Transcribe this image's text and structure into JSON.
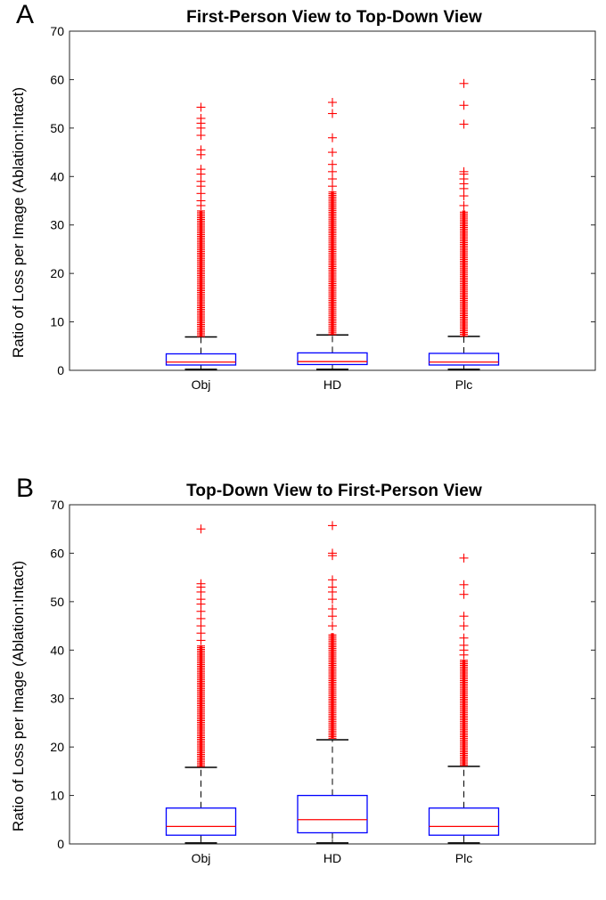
{
  "panels": [
    {
      "letter": "A",
      "title": "First-Person View to Top-Down View",
      "ylabel": "Ratio of Loss per Image (Ablation:Intact)"
    },
    {
      "letter": "B",
      "title": "Top-Down View to First-Person View",
      "ylabel": "Ratio of Loss per Image (Ablation:Intact)"
    }
  ],
  "colors": {
    "box": "#0000ff",
    "median": "#ff0000",
    "outlier": "#ff0000",
    "whisker": "#000000",
    "axis": "#262626"
  },
  "chart_data": [
    {
      "type": "boxplot",
      "title": "First-Person View to Top-Down View",
      "xlabel": "",
      "ylabel": "Ratio of Loss per Image (Ablation:Intact)",
      "ylim": [
        0,
        70
      ],
      "yticks": [
        0,
        10,
        20,
        30,
        40,
        50,
        60,
        70
      ],
      "categories": [
        "Obj",
        "HD",
        "Plc"
      ],
      "grid": false,
      "boxes": [
        {
          "category": "Obj",
          "whisker_low": 0.2,
          "q1": 1.1,
          "median": 1.7,
          "q3": 3.4,
          "whisker_high": 6.9,
          "outlier_range": [
            7.0,
            33.0
          ],
          "outliers_high": [
            34,
            35,
            36.5,
            38,
            39,
            40.5,
            41.5,
            44.5,
            45.5,
            48.5,
            50,
            51,
            52,
            54.3
          ]
        },
        {
          "category": "HD",
          "whisker_low": 0.2,
          "q1": 1.2,
          "median": 1.8,
          "q3": 3.6,
          "whisker_high": 7.3,
          "outlier_range": [
            7.4,
            37.0
          ],
          "outliers_high": [
            38,
            39.5,
            41,
            42.5,
            45,
            48,
            53,
            55.3
          ]
        },
        {
          "category": "Plc",
          "whisker_low": 0.2,
          "q1": 1.1,
          "median": 1.7,
          "q3": 3.5,
          "whisker_high": 7.0,
          "outlier_range": [
            7.1,
            33.0
          ],
          "outliers_high": [
            34,
            36,
            37.5,
            38.5,
            39.5,
            40.5,
            41,
            50.8,
            54.7,
            59.2
          ]
        }
      ]
    },
    {
      "type": "boxplot",
      "title": "Top-Down View to First-Person View",
      "xlabel": "",
      "ylabel": "Ratio of Loss per Image (Ablation:Intact)",
      "ylim": [
        0,
        70
      ],
      "yticks": [
        0,
        10,
        20,
        30,
        40,
        50,
        60,
        70
      ],
      "categories": [
        "Obj",
        "HD",
        "Plc"
      ],
      "grid": false,
      "boxes": [
        {
          "category": "Obj",
          "whisker_low": 0.2,
          "q1": 1.8,
          "median": 3.6,
          "q3": 7.4,
          "whisker_high": 15.8,
          "outlier_range": [
            16.0,
            41.0
          ],
          "outliers_high": [
            42,
            43.5,
            45,
            46.5,
            48,
            49.5,
            50.5,
            52,
            53,
            53.7,
            65
          ]
        },
        {
          "category": "HD",
          "whisker_low": 0.2,
          "q1": 2.3,
          "median": 5.0,
          "q3": 10.0,
          "whisker_high": 21.5,
          "outlier_range": [
            21.8,
            43.5
          ],
          "outliers_high": [
            45,
            47,
            48.5,
            50.5,
            52,
            53,
            54.5,
            59.5,
            60,
            65.7
          ]
        },
        {
          "category": "Plc",
          "whisker_low": 0.2,
          "q1": 1.8,
          "median": 3.6,
          "q3": 7.4,
          "whisker_high": 16.0,
          "outlier_range": [
            16.2,
            38.0
          ],
          "outliers_high": [
            39,
            40,
            41,
            42.5,
            45,
            47,
            51.5,
            53.5,
            59
          ]
        }
      ]
    }
  ]
}
